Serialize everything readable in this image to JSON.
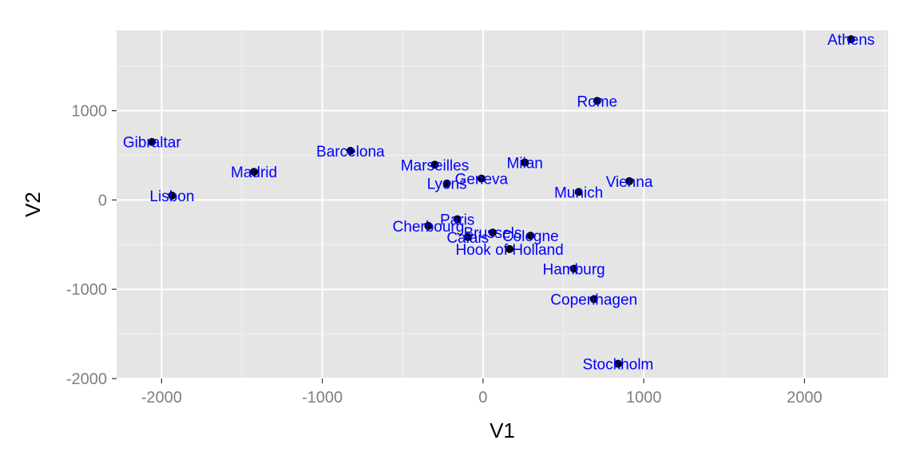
{
  "chart_data": {
    "type": "scatter",
    "title": "",
    "xlabel": "V1",
    "ylabel": "V2",
    "xlim": [
      -2280,
      2520
    ],
    "ylim": [
      -2000,
      1900
    ],
    "xticks": [
      -2000,
      -1000,
      0,
      1000,
      2000
    ],
    "xtick_labels": [
      "-2000",
      "-1000",
      "0",
      "1000",
      "2000"
    ],
    "yticks": [
      -2000,
      -1000,
      0,
      1000
    ],
    "ytick_labels": [
      "-2000",
      "-1000",
      "0",
      "1000"
    ],
    "grid": true,
    "point_color": "#000000",
    "label_color": "#0000ff",
    "panel_background": "#e5e5e5",
    "grid_color": "#ffffff",
    "points": [
      {
        "label": "Athens",
        "x": 2290,
        "y": 1800
      },
      {
        "label": "Barcelona",
        "x": -825,
        "y": 550
      },
      {
        "label": "Brussels",
        "x": 60,
        "y": -365
      },
      {
        "label": "Calais",
        "x": -95,
        "y": -415
      },
      {
        "label": "Cherbourg",
        "x": -340,
        "y": -290
      },
      {
        "label": "Cologne",
        "x": 295,
        "y": -400
      },
      {
        "label": "Copenhagen",
        "x": 690,
        "y": -1110
      },
      {
        "label": "Geneva",
        "x": -10,
        "y": 240
      },
      {
        "label": "Gibraltar",
        "x": -2060,
        "y": 650
      },
      {
        "label": "Hamburg",
        "x": 565,
        "y": -770
      },
      {
        "label": "Hook of Holland",
        "x": 165,
        "y": -550
      },
      {
        "label": "Lisbon",
        "x": -1935,
        "y": 50
      },
      {
        "label": "Lyons",
        "x": -225,
        "y": 185
      },
      {
        "label": "Madrid",
        "x": -1425,
        "y": 315
      },
      {
        "label": "Marseilles",
        "x": -300,
        "y": 395
      },
      {
        "label": "Milan",
        "x": 260,
        "y": 420
      },
      {
        "label": "Munich",
        "x": 595,
        "y": 90
      },
      {
        "label": "Paris",
        "x": -160,
        "y": -215
      },
      {
        "label": "Rome",
        "x": 710,
        "y": 1110
      },
      {
        "label": "Stockholm",
        "x": 840,
        "y": -1835
      },
      {
        "label": "Vienna",
        "x": 910,
        "y": 210
      }
    ]
  }
}
